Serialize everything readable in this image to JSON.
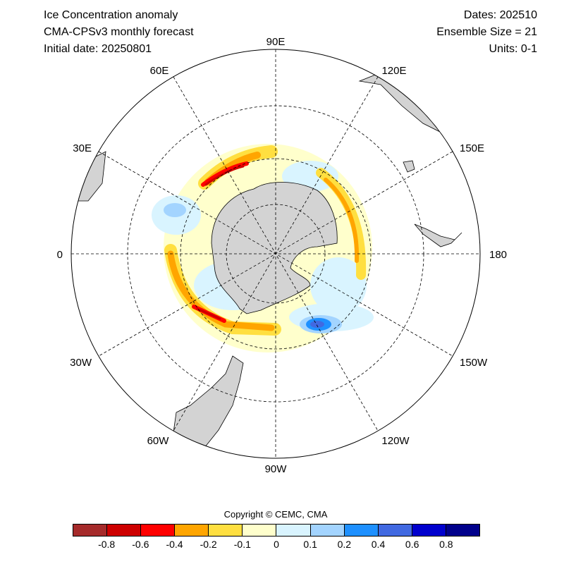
{
  "header": {
    "title": "Ice Concentration anomaly",
    "model": "CMA-CPSv3 monthly forecast",
    "initial_date": "Initial date: 20250801",
    "dates": "Dates: 202510",
    "ensemble": "Ensemble Size = 21",
    "units": "Units: 0-1"
  },
  "map": {
    "projection": "south-polar-stereographic",
    "grid": true,
    "longitude_labels": [
      "90E",
      "120E",
      "150E",
      "180",
      "150W",
      "120W",
      "90W",
      "60W",
      "30W",
      "0",
      "30E",
      "60E"
    ],
    "land_color": "#d3d3d3"
  },
  "copyright": "Copyright © CEMC, CMA",
  "colorbar": {
    "colors": [
      "#a52a2a",
      "#cd0000",
      "#ff0000",
      "#ffa500",
      "#ffdf40",
      "#ffffcc",
      "#d9f4ff",
      "#a3d4ff",
      "#1e90ff",
      "#4169e1",
      "#0000cd",
      "#00008b"
    ],
    "tick_labels": [
      "-0.8",
      "-0.6",
      "-0.4",
      "-0.2",
      "-0.1",
      "0",
      "0.1",
      "0.2",
      "0.4",
      "0.6",
      "0.8"
    ]
  }
}
